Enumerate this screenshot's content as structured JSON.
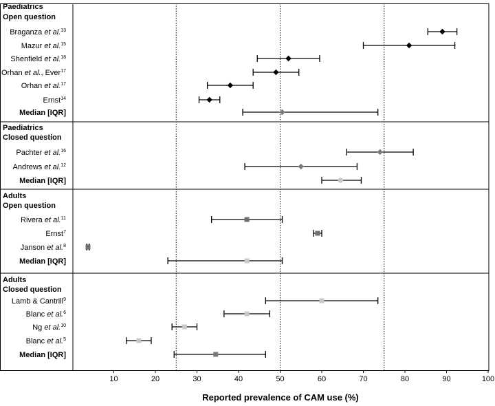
{
  "chart_data": {
    "type": "forest",
    "xlabel": "Reported prevalence of CAM use (%)",
    "xlim": [
      0,
      100
    ],
    "xticks": [
      10,
      20,
      30,
      40,
      50,
      60,
      70,
      80,
      90,
      100
    ],
    "reference_lines": [
      25,
      50,
      75
    ],
    "groups": [
      {
        "title": [
          "Paediatrics",
          "Open question"
        ],
        "rows": [
          {
            "label": "Braganza",
            "etal": true,
            "suffix": "",
            "ref": "13",
            "value": 89,
            "low": 85.5,
            "high": 92.5,
            "marker": "diamond",
            "color": "#000000"
          },
          {
            "label": "Mazur",
            "etal": true,
            "suffix": "",
            "ref": "15",
            "value": 81,
            "low": 70,
            "high": 92,
            "marker": "diamond",
            "color": "#000000"
          },
          {
            "label": "Shenfield",
            "etal": true,
            "suffix": "",
            "ref": "18",
            "value": 52,
            "low": 44.5,
            "high": 59.5,
            "marker": "diamond",
            "color": "#000000"
          },
          {
            "label": "Orhan",
            "etal": true,
            "suffix": ", Ever",
            "ref": "17",
            "value": 49,
            "low": 43.5,
            "high": 54.5,
            "marker": "diamond",
            "color": "#000000"
          },
          {
            "label": "Orhan",
            "etal": true,
            "suffix": "",
            "ref": "17",
            "value": 38,
            "low": 32.5,
            "high": 43.5,
            "marker": "diamond",
            "color": "#000000"
          },
          {
            "label": "Ernst",
            "etal": false,
            "suffix": "",
            "ref": "14",
            "value": 33,
            "low": 30.5,
            "high": 35.5,
            "marker": "diamond",
            "color": "#000000"
          },
          {
            "label": "Median [IQR]",
            "bold": true,
            "value": 50.5,
            "low": 41,
            "high": 73.5,
            "marker": "diamond",
            "color": "#7a7a7a"
          }
        ]
      },
      {
        "title": [
          "Paediatrics",
          "Closed question"
        ],
        "rows": [
          {
            "label": "Pachter",
            "etal": true,
            "suffix": "",
            "ref": "16",
            "value": 74,
            "low": 66,
            "high": 82,
            "marker": "diamond",
            "color": "#7a7a7a"
          },
          {
            "label": "Andrews",
            "etal": true,
            "suffix": "",
            "ref": "12",
            "value": 55,
            "low": 41.5,
            "high": 68.5,
            "marker": "diamond",
            "color": "#7a7a7a"
          },
          {
            "label": "Median [IQR]",
            "bold": true,
            "value": 64.5,
            "low": 60,
            "high": 69.5,
            "marker": "circle",
            "color": "#c8c8c8"
          }
        ]
      },
      {
        "title": [
          "Adults",
          "Open question"
        ],
        "rows": [
          {
            "label": "Rivera",
            "etal": true,
            "suffix": "",
            "ref": "11",
            "value": 42,
            "low": 33.5,
            "high": 50.5,
            "marker": "square",
            "color": "#6e6e6e"
          },
          {
            "label": "Ernst",
            "etal": false,
            "suffix": "",
            "ref": "7",
            "value": 59,
            "low": 58,
            "high": 60,
            "marker": "square",
            "color": "#6e6e6e"
          },
          {
            "label": "Janson",
            "etal": true,
            "suffix": "",
            "ref": "8",
            "value": 3.8,
            "low": 3.5,
            "high": 4.1,
            "marker": "square",
            "color": "#6e6e6e"
          },
          {
            "label": "Median [IQR]",
            "bold": true,
            "value": 42,
            "low": 23,
            "high": 50.5,
            "marker": "square",
            "color": "#c8c8c8"
          }
        ]
      },
      {
        "title": [
          "Adults",
          "Closed question"
        ],
        "rows": [
          {
            "label": "Lamb & Cantrill",
            "etal": false,
            "suffix": "",
            "ref": "9",
            "value": 60,
            "low": 46.5,
            "high": 73.5,
            "marker": "square",
            "color": "#c8c8c8"
          },
          {
            "label": "Blanc",
            "etal": true,
            "suffix": "",
            "ref": "6",
            "value": 42,
            "low": 36.5,
            "high": 47.5,
            "marker": "square",
            "color": "#c8c8c8"
          },
          {
            "label": "Ng",
            "etal": true,
            "suffix": "",
            "ref": "10",
            "value": 27,
            "low": 24,
            "high": 30,
            "marker": "square",
            "color": "#c8c8c8"
          },
          {
            "label": "Blanc",
            "etal": true,
            "suffix": "",
            "ref": "5",
            "value": 16,
            "low": 13,
            "high": 19,
            "marker": "square",
            "color": "#c8c8c8"
          },
          {
            "label": "Median [IQR]",
            "bold": true,
            "value": 34.5,
            "low": 24.5,
            "high": 46.5,
            "marker": "square",
            "color": "#7a7a7a"
          }
        ]
      }
    ]
  }
}
